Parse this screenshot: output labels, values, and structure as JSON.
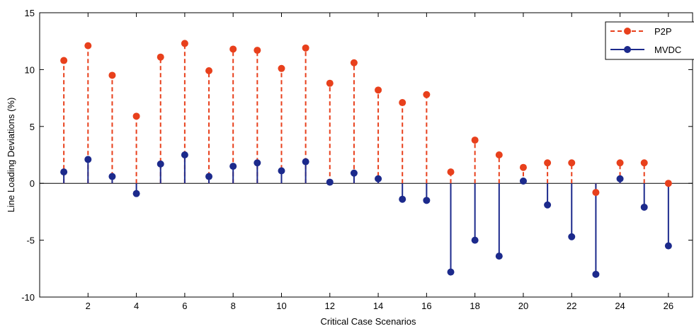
{
  "chart_data": {
    "type": "stem",
    "title": "",
    "xlabel": "Critical Case Scenarios",
    "ylabel": "Line Loading Deviations (%)",
    "xlim": [
      0,
      27
    ],
    "ylim": [
      -10,
      15
    ],
    "xticks": [
      2,
      4,
      6,
      8,
      10,
      12,
      14,
      16,
      18,
      20,
      22,
      24,
      26
    ],
    "yticks": [
      -10,
      -5,
      0,
      5,
      10,
      15
    ],
    "grid": false,
    "legend_position": "top-right",
    "x": [
      1,
      2,
      3,
      4,
      5,
      6,
      7,
      8,
      9,
      10,
      11,
      12,
      13,
      14,
      15,
      16,
      17,
      18,
      19,
      20,
      21,
      22,
      23,
      24,
      25,
      26
    ],
    "series": [
      {
        "name": "P2P",
        "color": "#e8401c",
        "line_style": "dashed",
        "values": [
          10.8,
          12.1,
          9.5,
          5.9,
          11.1,
          12.3,
          9.9,
          11.8,
          11.7,
          10.1,
          11.9,
          8.8,
          10.6,
          8.2,
          7.1,
          7.8,
          1.0,
          3.8,
          2.5,
          1.4,
          1.8,
          1.8,
          -0.8,
          1.8,
          1.8,
          0.0
        ]
      },
      {
        "name": "MVDC",
        "color": "#1c2a8c",
        "line_style": "solid",
        "values": [
          1.0,
          2.1,
          0.6,
          -0.9,
          1.7,
          2.5,
          0.6,
          1.5,
          1.8,
          1.1,
          1.9,
          0.1,
          0.9,
          0.4,
          -1.4,
          -1.5,
          -7.8,
          -5.0,
          -6.4,
          0.2,
          -1.9,
          -4.7,
          -8.0,
          0.4,
          -2.1,
          -5.5
        ]
      }
    ]
  }
}
